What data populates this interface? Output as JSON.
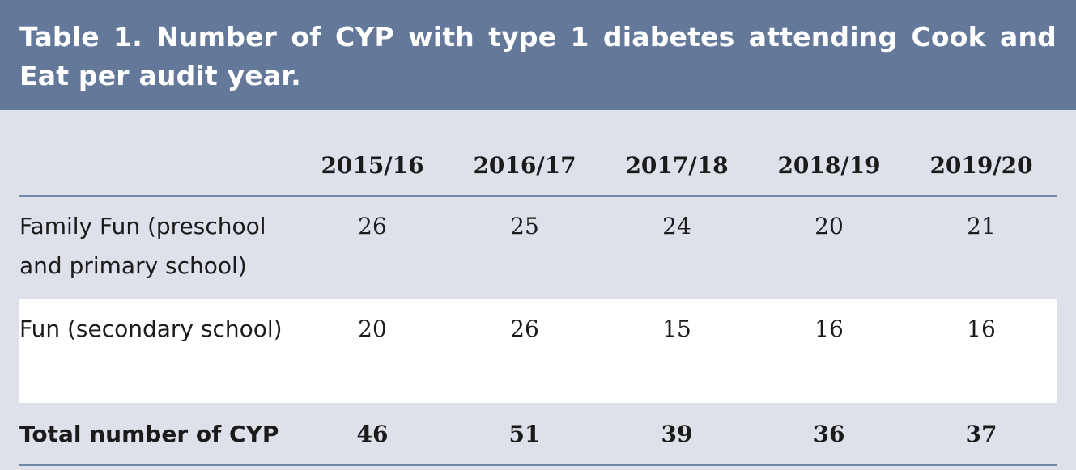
{
  "title": "Table 1. Number of CYP with type 1 diabetes attending Cook and Eat per audit year.",
  "table": {
    "corner": "",
    "columns": [
      "2015/16",
      "2016/17",
      "2017/18",
      "2018/19",
      "2019/20"
    ],
    "rows": [
      {
        "label": "Family Fun (preschool and primary school)",
        "values": [
          "26",
          "25",
          "24",
          "20",
          "21"
        ]
      },
      {
        "label": "Fun (secondary school)",
        "values": [
          "20",
          "26",
          "15",
          "16",
          "16"
        ]
      }
    ],
    "total": {
      "label": "Total number of CYP",
      "values": [
        "46",
        "51",
        "39",
        "36",
        "37"
      ]
    }
  },
  "colors": {
    "title_background": "#64789a",
    "title_text": "#ffffff",
    "page_background": "#dfe1ea",
    "highlight_row": "#ffffff",
    "rule": "#7086a8"
  }
}
